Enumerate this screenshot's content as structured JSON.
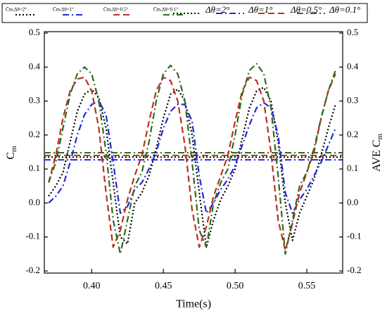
{
  "chart_data": {
    "type": "line",
    "xlabel": "Time(s)",
    "ylabel": "C",
    "ylabel_sub": "m",
    "y2label": "AVE C",
    "y2label_sub": "m",
    "xlim": [
      0.367,
      0.575
    ],
    "xticks": [
      {
        "value": 0.4,
        "label": "0.40"
      },
      {
        "value": 0.45,
        "label": "0.45"
      },
      {
        "value": 0.5,
        "label": "0.50"
      },
      {
        "value": 0.55,
        "label": "0.55"
      }
    ],
    "ylim": [
      -0.2,
      0.5
    ],
    "yticks": [
      -0.2,
      -0.1,
      {
        "value": 0,
        "label": "0.0"
      },
      0.1,
      0.2,
      0.3,
      0.4,
      0.5
    ],
    "y2lim": [
      -0.2,
      0.5
    ],
    "y2ticks": [
      -0.2,
      -0.1,
      {
        "value": 0,
        "label": "0.0"
      },
      0.1,
      0.2,
      0.3,
      0.4,
      0.5
    ],
    "x": [
      0.37,
      0.375,
      0.38,
      0.385,
      0.39,
      0.395,
      0.4,
      0.405,
      0.41,
      0.415,
      0.42,
      0.425,
      0.43,
      0.435,
      0.44,
      0.445,
      0.45,
      0.455,
      0.46,
      0.465,
      0.47,
      0.475,
      0.48,
      0.485,
      0.49,
      0.495,
      0.5,
      0.505,
      0.51,
      0.515,
      0.52,
      0.525,
      0.53,
      0.535,
      0.54,
      0.545,
      0.55,
      0.555,
      0.56,
      0.565,
      0.57
    ],
    "averages": [
      {
        "name": "C̄m,Δθ=2°",
        "color": "#000000",
        "dash": "dot",
        "value": 0.135,
        "axis": "y2"
      },
      {
        "name": "C̄m,Δθ=1°",
        "color": "#1f2bd6",
        "dash": "dashdot",
        "value": 0.127,
        "axis": "y2"
      },
      {
        "name": "C̄m,Δθ=0.5°",
        "color": "#b8321f",
        "dash": "dash",
        "value": 0.14,
        "axis": "y2"
      },
      {
        "name": "C̄m,Δθ=0.1°",
        "color": "#2e6b1f",
        "dash": "dashdot",
        "value": 0.148,
        "axis": "y2"
      }
    ],
    "series": [
      {
        "name": "Δθ=2°",
        "color": "#000000",
        "dash": "dot",
        "values": [
          0.02,
          0.05,
          0.09,
          0.18,
          0.27,
          0.32,
          0.335,
          0.31,
          0.22,
          0.06,
          -0.1,
          -0.12,
          0,
          0.03,
          0.08,
          0.16,
          0.25,
          0.32,
          0.335,
          0.3,
          0.2,
          0.03,
          -0.13,
          -0.05,
          0.01,
          0.05,
          0.1,
          0.19,
          0.28,
          0.33,
          0.34,
          0.3,
          0.18,
          0,
          -0.11,
          -0.03,
          0.02,
          0.07,
          0.14,
          0.22,
          0.29
        ]
      },
      {
        "name": "Δθ=1°",
        "color": "#1f2bd6",
        "dash": "dashdot",
        "values": [
          0,
          0.02,
          0.05,
          0.12,
          0.2,
          0.26,
          0.29,
          0.3,
          0.26,
          0.12,
          -0.03,
          -0.01,
          0.04,
          0.06,
          0.1,
          0.15,
          0.22,
          0.27,
          0.29,
          0.29,
          0.24,
          0.08,
          -0.03,
          0,
          0.04,
          0.07,
          0.11,
          0.17,
          0.23,
          0.28,
          0.295,
          0.28,
          0.2,
          0.03,
          -0.03,
          0.01,
          0.04,
          0.08,
          0.12,
          0.17,
          0.22
        ]
      },
      {
        "name": "Δθ=0.5°",
        "color": "#b8321f",
        "dash": "dash",
        "values": [
          0.06,
          0.14,
          0.25,
          0.33,
          0.365,
          0.37,
          0.33,
          0.22,
          0.03,
          -0.13,
          -0.08,
          0.01,
          0.08,
          0.14,
          0.24,
          0.33,
          0.37,
          0.36,
          0.3,
          0.17,
          -0.02,
          -0.13,
          -0.07,
          0.02,
          0.08,
          0.14,
          0.24,
          0.33,
          0.37,
          0.36,
          0.3,
          0.15,
          -0.05,
          -0.14,
          -0.06,
          0.03,
          0.09,
          0.15,
          0.25,
          0.33,
          0.38
        ]
      },
      {
        "name": "Δθ=0.1°",
        "color": "#2e6b1f",
        "dash": "dashdot",
        "values": [
          0.06,
          0.12,
          0.22,
          0.32,
          0.38,
          0.4,
          0.38,
          0.3,
          0.15,
          -0.05,
          -0.15,
          -0.05,
          0.05,
          0.09,
          0.18,
          0.3,
          0.38,
          0.405,
          0.38,
          0.3,
          0.12,
          -0.08,
          -0.13,
          0,
          0.06,
          0.1,
          0.2,
          0.32,
          0.39,
          0.41,
          0.38,
          0.28,
          0.08,
          -0.15,
          -0.05,
          0.05,
          0.09,
          0.16,
          0.25,
          0.33,
          0.39
        ]
      }
    ]
  }
}
